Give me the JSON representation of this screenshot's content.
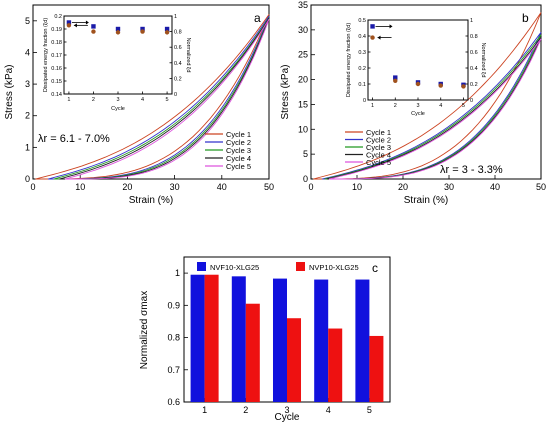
{
  "chart_data": [
    {
      "panel": "a",
      "type": "line",
      "xlabel": "Strain (%)",
      "ylabel": "Stress (kPa)",
      "xlim": [
        0,
        50
      ],
      "ylim": [
        0,
        5.5
      ],
      "xticks": [
        0,
        10,
        20,
        30,
        40,
        50
      ],
      "yticks": [
        0,
        1,
        2,
        3,
        4,
        5
      ],
      "legend_position": "bottom-right",
      "annotation": "λr = 6.1 - 7.0%",
      "series": [
        {
          "name": "Cycle 1",
          "color": "#cc4422",
          "peak": 5.2
        },
        {
          "name": "Cycle 2",
          "color": "#3333cc",
          "peak": 5.15
        },
        {
          "name": "Cycle 3",
          "color": "#229922",
          "peak": 5.1
        },
        {
          "name": "Cycle 4",
          "color": "#222222",
          "peak": 5.08
        },
        {
          "name": "Cycle 5",
          "color": "#dd55dd",
          "peak": 5.05
        }
      ],
      "inset": {
        "xlabel": "Cycle",
        "ylabel_left": "Dissipated energy fraction (ξd)",
        "ylabel_right": "Normalized ξd",
        "xlim": [
          0.8,
          5.2
        ],
        "ylim_left": [
          0.14,
          0.2
        ],
        "ylim_right": [
          0,
          1
        ],
        "xticks": [
          1,
          2,
          3,
          4,
          5
        ],
        "yticks_left": [
          "0.14",
          "0.15",
          "0.16",
          "0.17",
          "0.18",
          "0.19",
          "0.2"
        ],
        "yticks_right": [
          "0",
          "0.2",
          "0.4",
          "0.6",
          "0.8",
          "1"
        ],
        "series": [
          {
            "name": "Dissipated energy fraction",
            "color": "#1a1aa8",
            "marker": "square",
            "x": [
              1,
              2,
              3,
              4,
              5
            ],
            "y": [
              0.195,
              0.192,
              0.19,
              0.19,
              0.19
            ]
          },
          {
            "name": "Normalized",
            "color": "#a0521e",
            "marker": "circle",
            "x": [
              1,
              2,
              3,
              4,
              5
            ],
            "y": [
              0.88,
              0.8,
              0.79,
              0.8,
              0.79
            ]
          }
        ]
      }
    },
    {
      "panel": "b",
      "type": "line",
      "xlabel": "Strain (%)",
      "ylabel": "Stress (kPa)",
      "xlim": [
        0,
        50
      ],
      "ylim": [
        0,
        35
      ],
      "xticks": [
        0,
        10,
        20,
        30,
        40,
        50
      ],
      "yticks": [
        0,
        5,
        10,
        15,
        20,
        25,
        30,
        35
      ],
      "legend_position": "middle-left",
      "annotation": "λr = 3 - 3.3%",
      "series": [
        {
          "name": "Cycle 1",
          "color": "#cc4422",
          "peak": 33.5
        },
        {
          "name": "Cycle 2",
          "color": "#3333cc",
          "peak": 29.5
        },
        {
          "name": "Cycle 3",
          "color": "#229922",
          "peak": 29.0
        },
        {
          "name": "Cycle 4",
          "color": "#222222",
          "peak": 28.5
        },
        {
          "name": "Cycle 5",
          "color": "#dd55dd",
          "peak": 28.2
        }
      ],
      "inset": {
        "xlabel": "Cycle",
        "ylabel_left": "Dissipated energy fraction (ξd)",
        "ylabel_right": "Normalized ξd",
        "xlim": [
          0.8,
          5.2
        ],
        "ylim_left": [
          0,
          0.5
        ],
        "ylim_right": [
          0,
          1
        ],
        "xticks": [
          1,
          2,
          3,
          4,
          5
        ],
        "yticks_left": [
          "0",
          "0.1",
          "0.2",
          "0.3",
          "0.4",
          "0.5"
        ],
        "yticks_right": [
          "0",
          "0.2",
          "0.4",
          "0.6",
          "0.8",
          "1"
        ],
        "series": [
          {
            "name": "Dissipated energy fraction",
            "color": "#1a1aa8",
            "marker": "square",
            "x": [
              1,
              2,
              3,
              4,
              5
            ],
            "y": [
              0.46,
              0.14,
              0.11,
              0.1,
              0.095
            ]
          },
          {
            "name": "Normalized",
            "color": "#a0521e",
            "marker": "circle",
            "x": [
              1,
              2,
              3,
              4,
              5
            ],
            "y": [
              0.78,
              0.24,
              0.2,
              0.18,
              0.17
            ]
          }
        ]
      }
    },
    {
      "panel": "c",
      "type": "bar",
      "xlabel": "Cycle",
      "ylabel": "Normalized σmax",
      "categories": [
        "1",
        "2",
        "3",
        "4",
        "5"
      ],
      "ylim": [
        0.6,
        1.05
      ],
      "yticks": [
        "0.6",
        "0.7",
        "0.8",
        "0.9",
        "1"
      ],
      "legend_position": "top",
      "series": [
        {
          "name": "NVF10-XLG25",
          "color": "#1111dd",
          "values": [
            0.995,
            0.99,
            0.983,
            0.98,
            0.98
          ]
        },
        {
          "name": "NVP10-XLG25",
          "color": "#ee1111",
          "values": [
            0.995,
            0.905,
            0.86,
            0.828,
            0.805
          ]
        }
      ]
    }
  ]
}
